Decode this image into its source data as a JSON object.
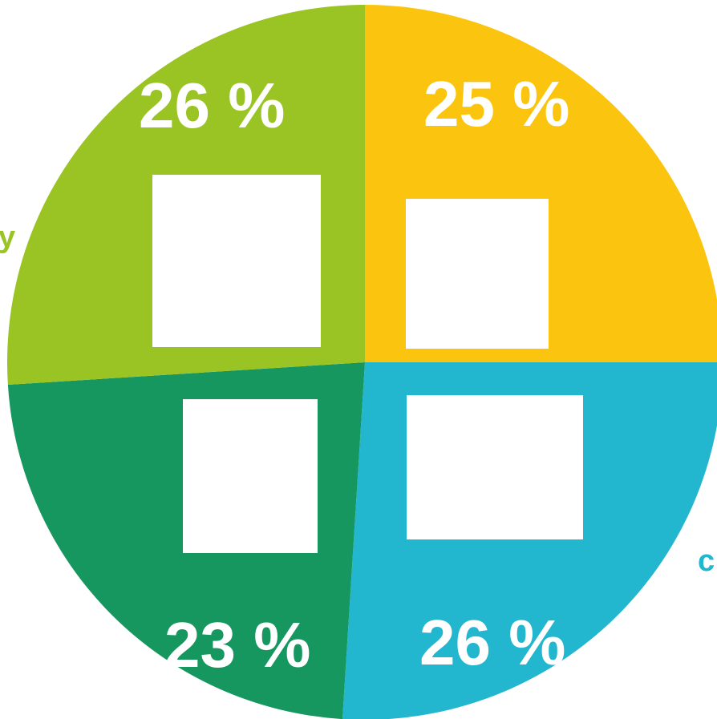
{
  "chart_data": {
    "type": "pie",
    "title": "",
    "slices": [
      {
        "value": 25,
        "label": "25 %",
        "color": "#FBC40E"
      },
      {
        "value": 26,
        "label": "26 %",
        "color": "#22B6CF"
      },
      {
        "value": 23,
        "label": "23 %",
        "color": "#179760"
      },
      {
        "value": 26,
        "label": "26 %",
        "color": "#99C424"
      }
    ],
    "edge_labels": [
      {
        "text": "y",
        "color": "#99C424"
      },
      {
        "text": "c",
        "color": "#22B6CF"
      }
    ],
    "legend": "none"
  }
}
